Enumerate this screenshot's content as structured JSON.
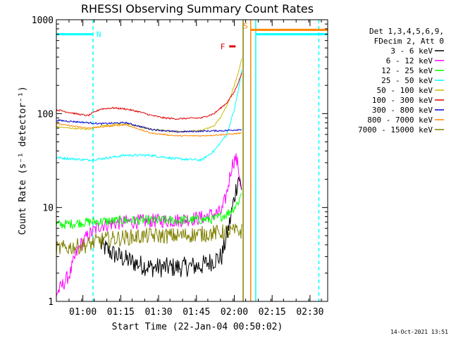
{
  "chart_data": {
    "type": "line",
    "title": "RHESSI Observing Summary Count Rates",
    "xlabel": "Start Time (22-Jan-04 00:50:02)",
    "ylabel": "Count Rate (s⁻¹ detector⁻¹)",
    "yscale": "log",
    "ylim": [
      1,
      1000
    ],
    "xlim_min": [
      -7.5,
      100
    ],
    "x_units": "minutes after 00:57:32",
    "x_ticks": [
      {
        "min": 3.0,
        "label": "01:00"
      },
      {
        "min": 18.0,
        "label": "01:15"
      },
      {
        "min": 33.0,
        "label": "01:30"
      },
      {
        "min": 48.0,
        "label": "01:45"
      },
      {
        "min": 63.0,
        "label": "02:00"
      },
      {
        "min": 78.0,
        "label": "02:15"
      },
      {
        "min": 93.0,
        "label": "02:30"
      }
    ],
    "y_ticks": [
      {
        "value": 1,
        "label": "1"
      },
      {
        "value": 10,
        "label": "10"
      },
      {
        "value": 100,
        "label": "100"
      },
      {
        "value": 1000,
        "label": "1000"
      }
    ],
    "legend": {
      "header": [
        "Det 1,3,4,5,6,9,",
        "FDecim 2, Att 0"
      ],
      "placement": "right"
    },
    "series": [
      {
        "name": "3 - 6 keV",
        "color": "#000000",
        "noise": 0.25,
        "x": [
          10,
          15,
          20,
          25,
          30,
          40,
          50,
          58,
          61,
          63.5,
          64.8,
          66
        ],
        "y": [
          4.0,
          3.2,
          2.8,
          2.5,
          2.3,
          2.3,
          2.4,
          3.0,
          6.5,
          15,
          22,
          14
        ]
      },
      {
        "name": "6 - 12 keV",
        "color": "#ff00ff",
        "noise": 0.18,
        "x": [
          -7.5,
          -5,
          -2,
          0,
          2,
          5,
          10,
          20,
          30,
          40,
          50,
          58,
          60,
          62,
          63.5,
          64.5,
          65.5,
          66
        ],
        "y": [
          1.2,
          1.5,
          2.0,
          3.0,
          4.0,
          5.0,
          6.5,
          7.0,
          7.2,
          7.3,
          7.8,
          9.0,
          14,
          28,
          34,
          28,
          18,
          15
        ]
      },
      {
        "name": "12 - 25 keV",
        "color": "#00ff00",
        "noise": 0.12,
        "x": [
          -7.5,
          5,
          20,
          40,
          55,
          60,
          63,
          65,
          66
        ],
        "y": [
          6.5,
          7.0,
          7.3,
          7.3,
          7.5,
          8.5,
          10,
          12,
          15
        ]
      },
      {
        "name": "25 - 50 keV",
        "color": "#00ffff",
        "noise": 0.03,
        "x": [
          -7.5,
          5,
          10,
          20,
          30,
          40,
          50,
          55,
          60,
          63,
          65,
          66
        ],
        "y": [
          34,
          32,
          33,
          36,
          36,
          33,
          32,
          40,
          60,
          110,
          200,
          300
        ]
      },
      {
        "name": "50 - 100 keV",
        "color": "#ccbb00",
        "noise": 0.02,
        "x": [
          -7.5,
          5,
          10,
          20,
          30,
          40,
          50,
          55,
          58,
          61,
          63,
          65,
          66
        ],
        "y": [
          72,
          68,
          74,
          78,
          68,
          64,
          66,
          74,
          95,
          140,
          200,
          300,
          400
        ]
      },
      {
        "name": "100 - 300 keV",
        "color": "#e00000",
        "noise": 0.02,
        "x": [
          -7.5,
          0,
          5,
          10,
          15,
          20,
          25,
          30,
          35,
          40,
          50,
          55,
          60,
          63,
          65,
          66
        ],
        "y": [
          110,
          100,
          95,
          112,
          115,
          112,
          105,
          96,
          90,
          88,
          90,
          100,
          130,
          170,
          230,
          270
        ]
      },
      {
        "name": "300 - 800 keV",
        "color": "#0000cc",
        "noise": 0.02,
        "x": [
          -7.5,
          5,
          10,
          20,
          30,
          40,
          50,
          60,
          66
        ],
        "y": [
          85,
          80,
          78,
          80,
          68,
          64,
          65,
          66,
          68
        ]
      },
      {
        "name": "800 - 7000 keV",
        "color": "#ff8800",
        "noise": 0.015,
        "x": [
          -7.5,
          5,
          10,
          20,
          30,
          40,
          50,
          60,
          66
        ],
        "y": [
          78,
          70,
          72,
          76,
          62,
          58,
          58,
          60,
          62
        ]
      },
      {
        "name": "7000 - 15000 keV",
        "color": "#808000",
        "noise": 0.2,
        "x": [
          -7.5,
          5,
          10,
          20,
          30,
          40,
          50,
          60,
          64,
          66
        ],
        "y": [
          3.6,
          4.0,
          4.5,
          4.8,
          5.0,
          5.0,
          5.2,
          5.5,
          5.6,
          5.6
        ]
      }
    ],
    "flag_bars": [
      {
        "label": "N",
        "color": "#00ffff",
        "y": 700,
        "segments": [
          [
            -7.5,
            7.0
          ],
          [
            71.5,
            100
          ]
        ]
      },
      {
        "label": "S",
        "color": "#ff8800",
        "y": 780,
        "segments": [
          [
            69.5,
            100
          ]
        ]
      },
      {
        "label": "F",
        "color": "#e00000",
        "y": 520,
        "segments": [
          [
            61.0,
            63.5
          ]
        ]
      }
    ],
    "vertical_lines": [
      {
        "min": 7.0,
        "color": "#00ffff",
        "style": "dashed"
      },
      {
        "min": 66.5,
        "color": "#808000",
        "style": "solid"
      },
      {
        "min": 69.5,
        "color": "#ff8800",
        "style": "solid"
      },
      {
        "min": 71.5,
        "color": "#00ffff",
        "style": "solid"
      },
      {
        "min": 96.5,
        "color": "#00ffff",
        "style": "dashed"
      }
    ]
  },
  "footer_timestamp": "14-Oct-2021 13:51"
}
